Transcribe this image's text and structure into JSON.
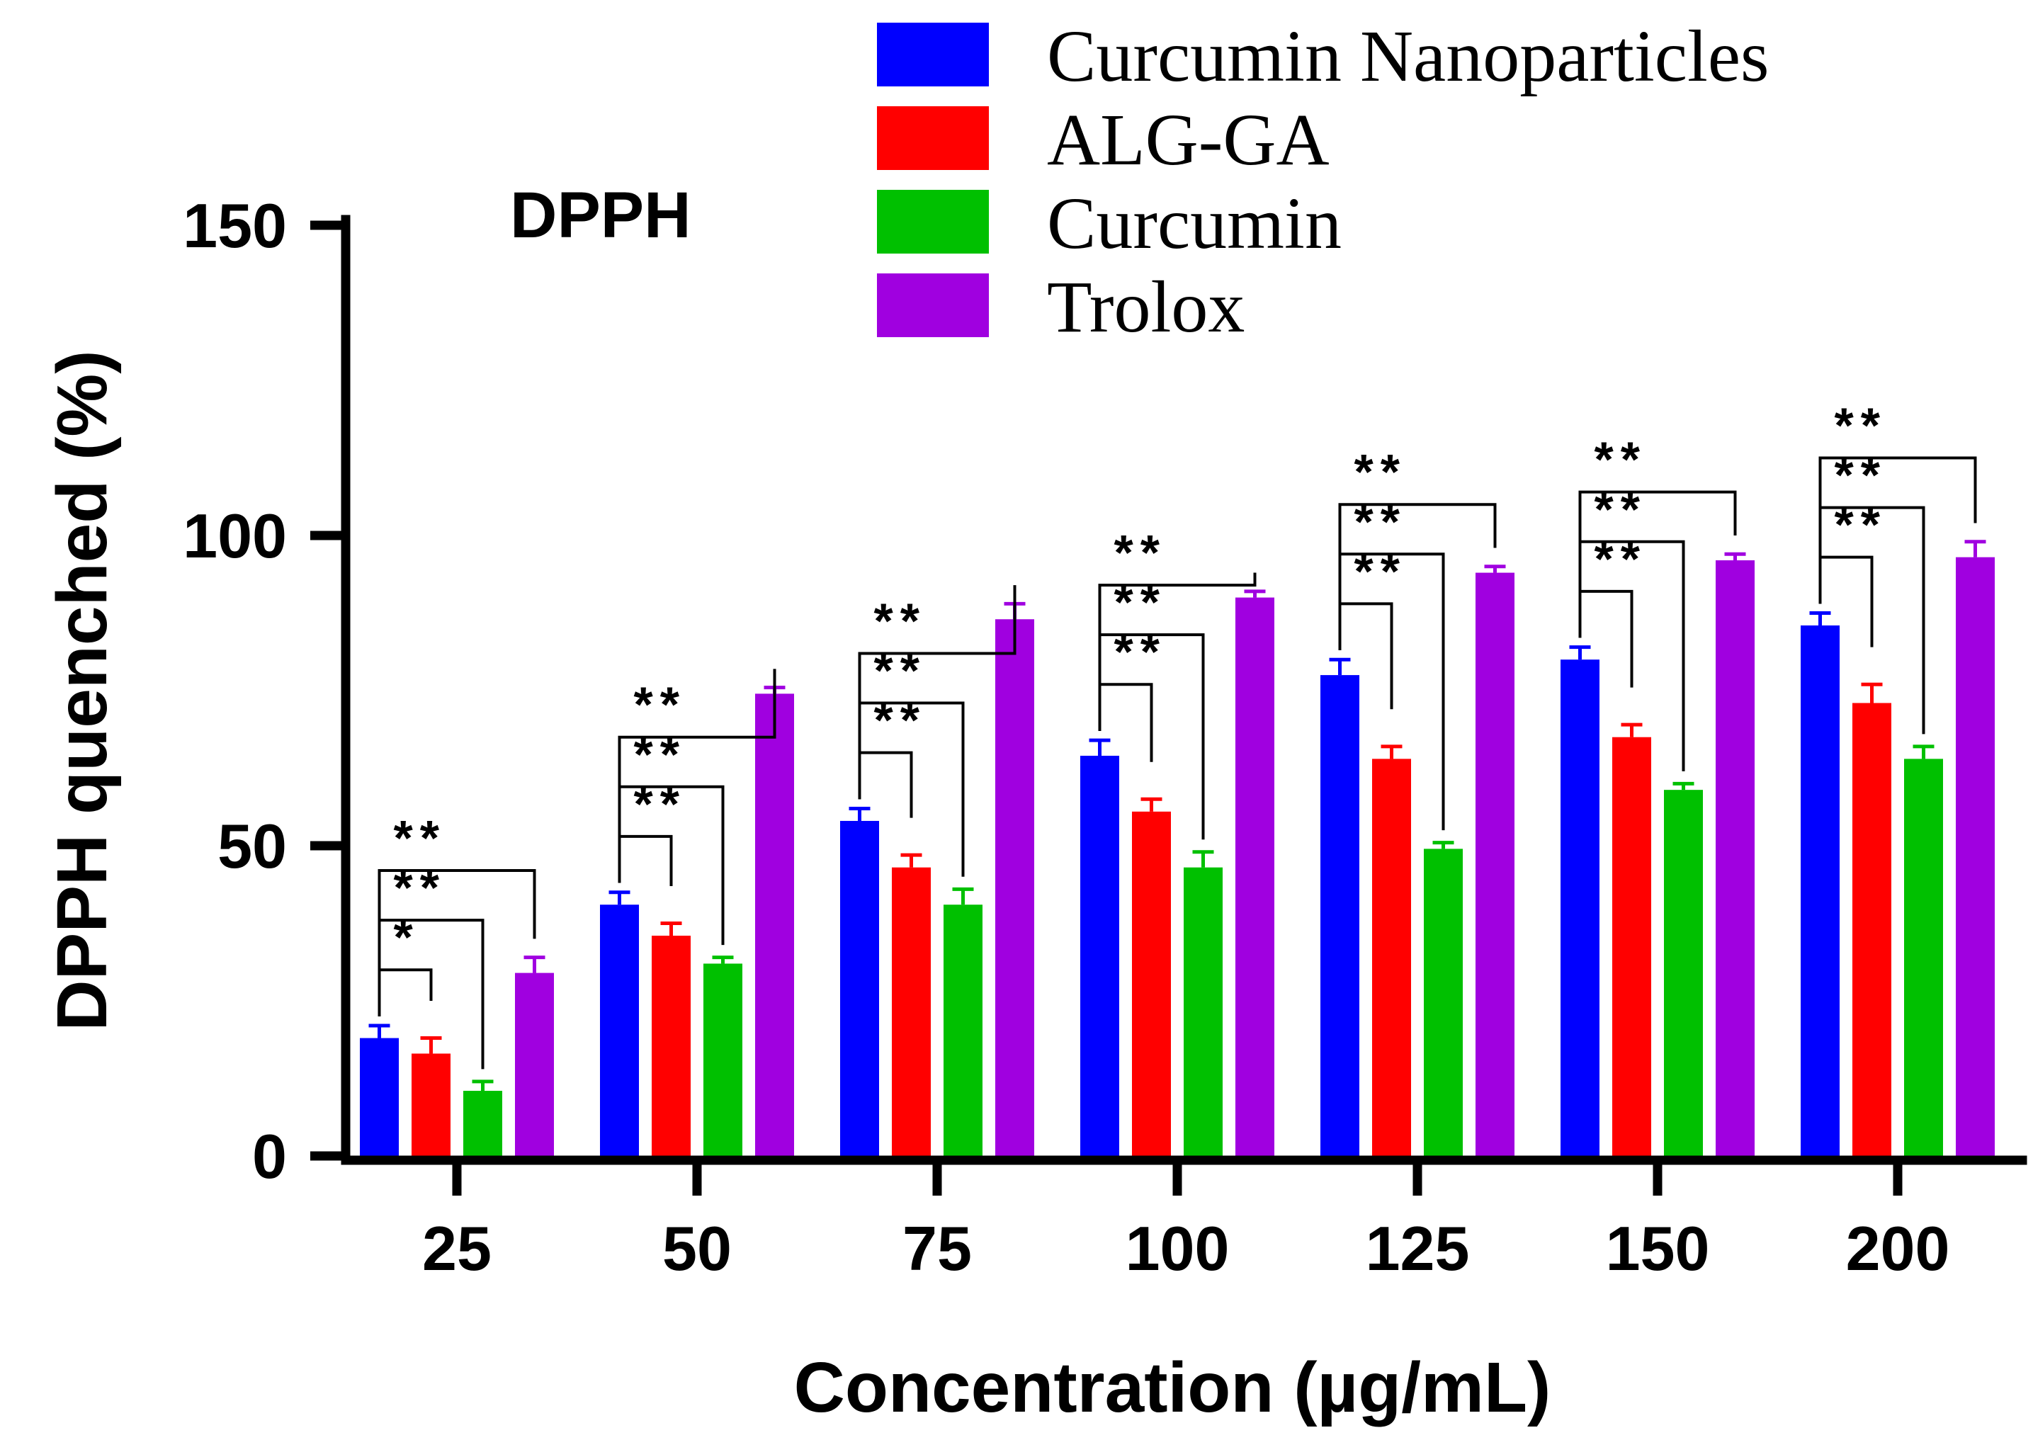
{
  "chart_data": {
    "type": "bar",
    "title": "DPPH",
    "xlabel": "Concentration (µg/mL)",
    "ylabel": "DPPH quenched (%)",
    "ylim": [
      0,
      150
    ],
    "yticks": [
      "0",
      "50",
      "100",
      "150"
    ],
    "categories": [
      "25",
      "50",
      "75",
      "100",
      "125",
      "150",
      "200"
    ],
    "series": [
      {
        "name": "Curcumin Nanoparticles",
        "color": "#0000ff",
        "values": [
          19,
          40.5,
          54,
          64.5,
          77.5,
          80,
          85.5
        ],
        "errors": [
          2,
          2,
          2,
          2.5,
          2.5,
          2,
          2
        ]
      },
      {
        "name": "ALG-GA",
        "color": "#ff0000",
        "values": [
          16.5,
          35.5,
          46.5,
          55.5,
          64,
          67.5,
          73
        ],
        "errors": [
          2.5,
          2,
          2,
          2,
          2,
          2,
          3
        ]
      },
      {
        "name": " Curcumin",
        "color": "#00c000",
        "values": [
          10.5,
          31,
          40.5,
          46.5,
          49.5,
          59,
          64
        ],
        "errors": [
          1.5,
          1,
          2.5,
          2.5,
          1,
          1,
          2
        ]
      },
      {
        "name": "Trolox",
        "color": "#a000e0",
        "values": [
          29.5,
          74.5,
          86.5,
          90,
          94,
          96,
          96.5
        ],
        "errors": [
          2.5,
          1,
          2.5,
          1,
          1,
          1,
          2.5
        ]
      }
    ],
    "significance": [
      [
        "*",
        "**",
        "**"
      ],
      [
        "**",
        "**",
        "**"
      ],
      [
        "**",
        "**",
        "**"
      ],
      [
        "**",
        "**",
        "**"
      ],
      [
        "**",
        "**",
        "**"
      ],
      [
        "**",
        "**",
        "**"
      ],
      [
        "**",
        "**",
        "**"
      ]
    ],
    "legend_position": "top-right"
  }
}
